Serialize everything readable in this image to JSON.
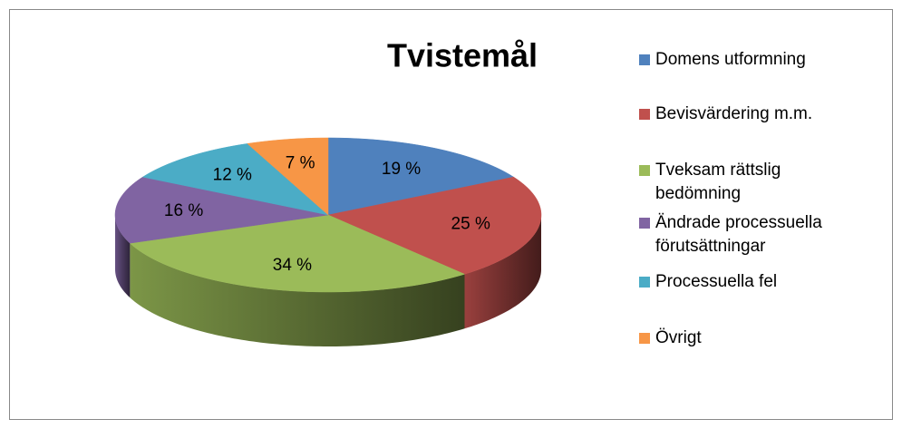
{
  "chart_data": {
    "type": "pie3d",
    "title": "Tvistemål",
    "categories": [
      "Domens utformning",
      "Bevisvärdering m.m.",
      "Tveksam rättslig bedömning",
      "Ändrade processuella förutsättningar",
      "Processuella fel",
      "Övrigt"
    ],
    "values": [
      19,
      25,
      34,
      16,
      12,
      7
    ],
    "value_labels": [
      "19 %",
      "25 %",
      "34 %",
      "16 %",
      "12 %",
      "7 %"
    ],
    "colors": [
      "#4f81bd",
      "#c0504d",
      "#9bbb59",
      "#8064a2",
      "#4bacc6",
      "#f79646"
    ],
    "legend": "right"
  }
}
